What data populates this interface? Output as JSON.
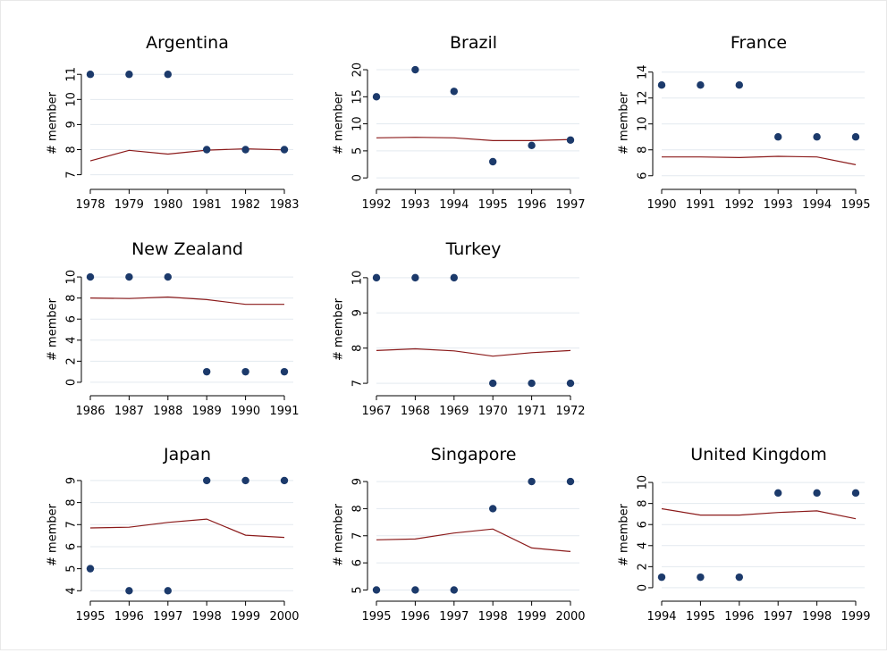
{
  "colors": {
    "dot": "#1c3a6b",
    "line": "#8b1a1a",
    "grid": "#e3e9ef",
    "axis": "#000000"
  },
  "chart_data": [
    {
      "type": "scatter",
      "title": "Argentina",
      "xlabel": "",
      "ylabel": "# member",
      "x": [
        1978,
        1979,
        1980,
        1981,
        1982,
        1983
      ],
      "y": [
        11,
        11,
        11,
        8,
        8,
        8
      ],
      "fitted": [
        7.55,
        7.97,
        7.82,
        7.98,
        8.03,
        7.99
      ],
      "yticks": [
        7,
        8,
        9,
        10,
        11
      ],
      "ylim": [
        6.7,
        11.4
      ]
    },
    {
      "type": "scatter",
      "title": "Brazil",
      "xlabel": "",
      "ylabel": "# member",
      "x": [
        1992,
        1993,
        1994,
        1995,
        1996,
        1997
      ],
      "y": [
        15,
        20,
        16,
        3,
        6,
        7
      ],
      "fitted": [
        7.4,
        7.5,
        7.4,
        6.9,
        6.9,
        7.1
      ],
      "yticks": [
        0,
        5,
        10,
        15,
        20
      ],
      "ylim": [
        -0.8,
        21
      ]
    },
    {
      "type": "scatter",
      "title": "France",
      "xlabel": "",
      "ylabel": "# member",
      "x": [
        1990,
        1991,
        1992,
        1993,
        1994,
        1995
      ],
      "y": [
        13,
        13,
        13,
        9,
        9,
        9
      ],
      "fitted": [
        7.45,
        7.45,
        7.4,
        7.5,
        7.45,
        6.85
      ],
      "yticks": [
        6,
        8,
        10,
        12,
        14
      ],
      "ylim": [
        5.5,
        14.6
      ]
    },
    {
      "type": "scatter",
      "title": "New Zealand",
      "xlabel": "",
      "ylabel": "# member",
      "x": [
        1986,
        1987,
        1988,
        1989,
        1990,
        1991
      ],
      "y": [
        10,
        10,
        10,
        1,
        1,
        1
      ],
      "fitted": [
        8.0,
        7.95,
        8.1,
        7.85,
        7.4,
        7.4
      ],
      "yticks": [
        0,
        2,
        4,
        6,
        8,
        10
      ],
      "ylim": [
        -0.6,
        10.6
      ]
    },
    {
      "type": "scatter",
      "title": "Turkey",
      "xlabel": "",
      "ylabel": "# member",
      "x": [
        1967,
        1968,
        1969,
        1970,
        1971,
        1972
      ],
      "y": [
        10,
        10,
        10,
        7,
        7,
        7
      ],
      "fitted": [
        7.93,
        7.98,
        7.92,
        7.77,
        7.87,
        7.93
      ],
      "yticks": [
        7,
        8,
        9,
        10
      ],
      "ylim": [
        6.85,
        10.2
      ]
    },
    {
      "type": "scatter",
      "title": "Japan",
      "xlabel": "",
      "ylabel": "# member",
      "x": [
        1995,
        1996,
        1997,
        1998,
        1999,
        2000
      ],
      "y": [
        5,
        4,
        4,
        9,
        9,
        9
      ],
      "fitted": [
        6.85,
        6.88,
        7.1,
        7.25,
        6.52,
        6.42
      ],
      "yticks": [
        4,
        5,
        6,
        7,
        8,
        9
      ],
      "ylim": [
        3.85,
        9.2
      ]
    },
    {
      "type": "scatter",
      "title": "Singapore",
      "xlabel": "",
      "ylabel": "# member",
      "x": [
        1995,
        1996,
        1997,
        1998,
        1999,
        2000
      ],
      "y": [
        5,
        5,
        5,
        8,
        9,
        9
      ],
      "fitted": [
        6.85,
        6.88,
        7.1,
        7.25,
        6.55,
        6.42
      ],
      "yticks": [
        5,
        6,
        7,
        8,
        9
      ],
      "ylim": [
        4.85,
        9.2
      ]
    },
    {
      "type": "scatter",
      "title": "United Kingdom",
      "xlabel": "",
      "ylabel": "# member",
      "x": [
        1994,
        1995,
        1996,
        1997,
        1998,
        1999
      ],
      "y": [
        1,
        1,
        1,
        9,
        9,
        9
      ],
      "fitted": [
        7.5,
        6.9,
        6.9,
        7.15,
        7.3,
        6.55
      ],
      "yticks": [
        0,
        2,
        4,
        6,
        8,
        10
      ],
      "ylim": [
        -0.6,
        10.6
      ]
    }
  ]
}
